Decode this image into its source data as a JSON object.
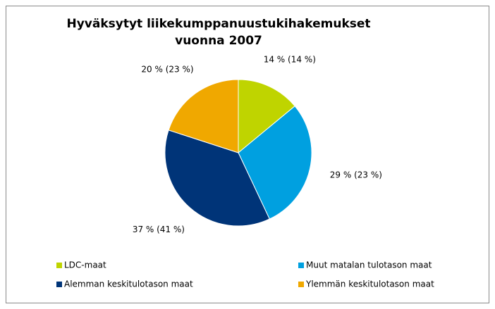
{
  "chart_data": {
    "type": "pie",
    "title": [
      "Hyväksytyt liikekumppanuustukihakemukset",
      "vuonna 2007"
    ],
    "categories": [
      "LDC-maat",
      "Muut matalan tulotason maat",
      "Alemman keskitulotason maat",
      "Ylemmän keskitulotason maat"
    ],
    "values": [
      14,
      29,
      37,
      20
    ],
    "value_labels": [
      "14 % (14 %)",
      "29 % (23 %)",
      "37 % (41 %)",
      "20 % (23 %)"
    ],
    "colors": [
      "#bfd400",
      "#00a0e0",
      "#003478",
      "#f0a800"
    ],
    "legend": "bottom"
  }
}
